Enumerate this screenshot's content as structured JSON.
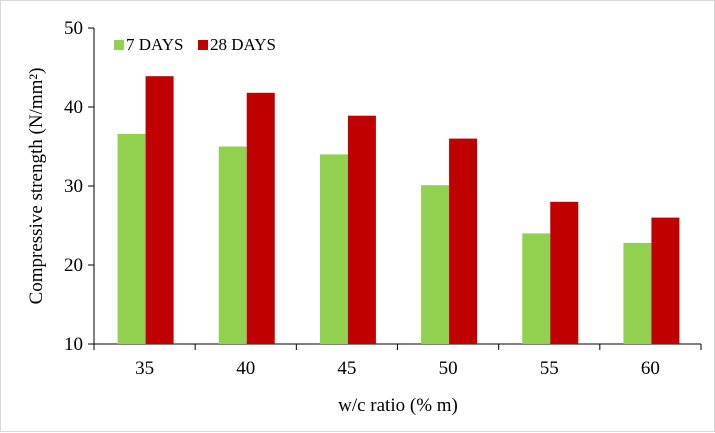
{
  "chart_data": {
    "type": "bar",
    "title": "",
    "xlabel": "w/c ratio (% m)",
    "ylabel": "Compressive strength (N/mm²)",
    "categories": [
      "35",
      "40",
      "45",
      "50",
      "55",
      "60"
    ],
    "ylim": [
      10,
      50
    ],
    "yticks": [
      10,
      20,
      30,
      40,
      50
    ],
    "grid": false,
    "legend_position": "top-left",
    "series": [
      {
        "name": "7 DAYS",
        "color": "#92d050",
        "values": [
          36.6,
          35.0,
          34.0,
          30.1,
          24.0,
          22.8
        ]
      },
      {
        "name": "28 DAYS",
        "color": "#c00000",
        "values": [
          43.9,
          41.8,
          38.9,
          36.0,
          28.0,
          26.0
        ]
      }
    ]
  }
}
